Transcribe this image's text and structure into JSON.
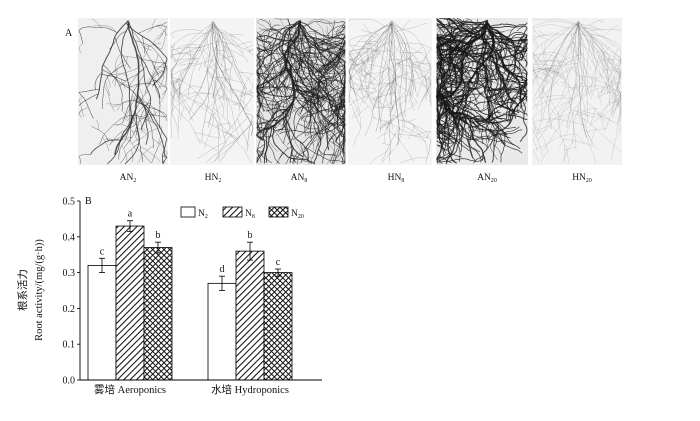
{
  "figure": {
    "panel_a": {
      "label": "A",
      "images": [
        {
          "label": "AN2"
        },
        {
          "label": "HN2"
        },
        {
          "label": "AN8"
        },
        {
          "label": "HN8"
        },
        {
          "label": "AN20"
        },
        {
          "label": "HN20"
        }
      ]
    },
    "panel_b": {
      "label": "B"
    }
  },
  "chart_data": {
    "type": "bar",
    "title": "",
    "xlabel": "",
    "ylabel": [
      "根系活力",
      "Root activity/(mg/(g·h))"
    ],
    "categories": [
      "雾培 Aeroponics",
      "水培 Hydroponics"
    ],
    "series": [
      {
        "name": "N2",
        "values": [
          0.32,
          0.27
        ],
        "errors": [
          0.02,
          0.02
        ],
        "letters": [
          "c",
          "d"
        ],
        "fill": "#ffffff"
      },
      {
        "name": "N8",
        "values": [
          0.43,
          0.36
        ],
        "errors": [
          0.015,
          0.025
        ],
        "letters": [
          "a",
          "b"
        ],
        "fill": "hatch-diagonal"
      },
      {
        "name": "N20",
        "values": [
          0.37,
          0.3
        ],
        "errors": [
          0.015,
          0.01
        ],
        "letters": [
          "b",
          "c"
        ],
        "fill": "hatch-cross"
      }
    ],
    "ylim": [
      0,
      0.5
    ],
    "yticks": [
      "0.0",
      "0.1",
      "0.2",
      "0.3",
      "0.4",
      "0.5"
    ],
    "legend_placement": "top",
    "grid": false
  }
}
